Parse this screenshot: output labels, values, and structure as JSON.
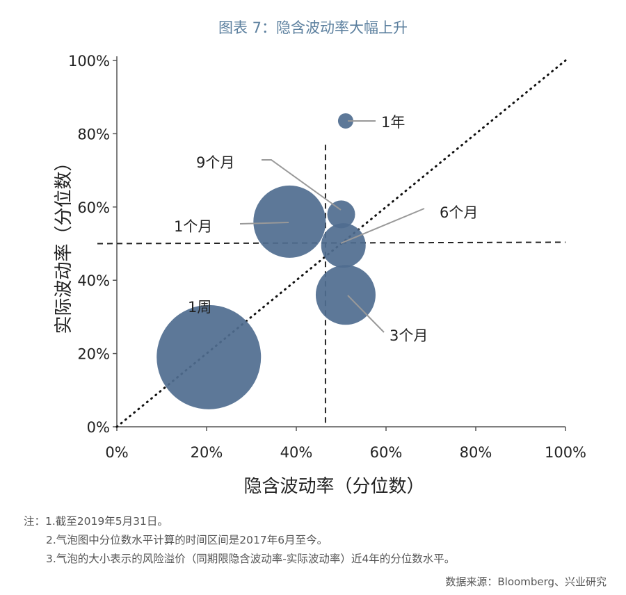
{
  "chart_data": {
    "type": "scatter",
    "title": "图表 7：隐含波动率大幅上升",
    "xlabel": "隐含波动率（分位数）",
    "ylabel": "实际波动率（分位数）",
    "xlim": [
      0,
      100
    ],
    "ylim": [
      0,
      100
    ],
    "x_ticks": [
      "0%",
      "20%",
      "40%",
      "60%",
      "80%",
      "100%"
    ],
    "y_ticks": [
      "0%",
      "20%",
      "40%",
      "60%",
      "80%",
      "100%"
    ],
    "reference_lines": {
      "x": 46.5,
      "y": 50,
      "diagonal": true
    },
    "bubble_color": "#4f6d8f",
    "points": [
      {
        "label": "1周",
        "x": 20.5,
        "y": 19,
        "size": 75
      },
      {
        "label": "1个月",
        "x": 38.5,
        "y": 56,
        "size": 52
      },
      {
        "label": "3个月",
        "x": 51,
        "y": 36,
        "size": 43
      },
      {
        "label": "6个月",
        "x": 50.5,
        "y": 49.5,
        "size": 32
      },
      {
        "label": "9个月",
        "x": 50,
        "y": 58,
        "size": 20
      },
      {
        "label": "1年",
        "x": 51,
        "y": 83.5,
        "size": 11
      }
    ]
  },
  "notes": {
    "prefix": "注：",
    "lines": [
      "1.截至2019年5月31日。",
      "2.气泡图中分位数水平计算的时间区间是2017年6月至今。",
      "3.气泡的大小表示的风险溢价（同期限隐含波动率-实际波动率）近4年的分位数水平。"
    ]
  },
  "source": "数据来源：Bloomberg、兴业研究"
}
